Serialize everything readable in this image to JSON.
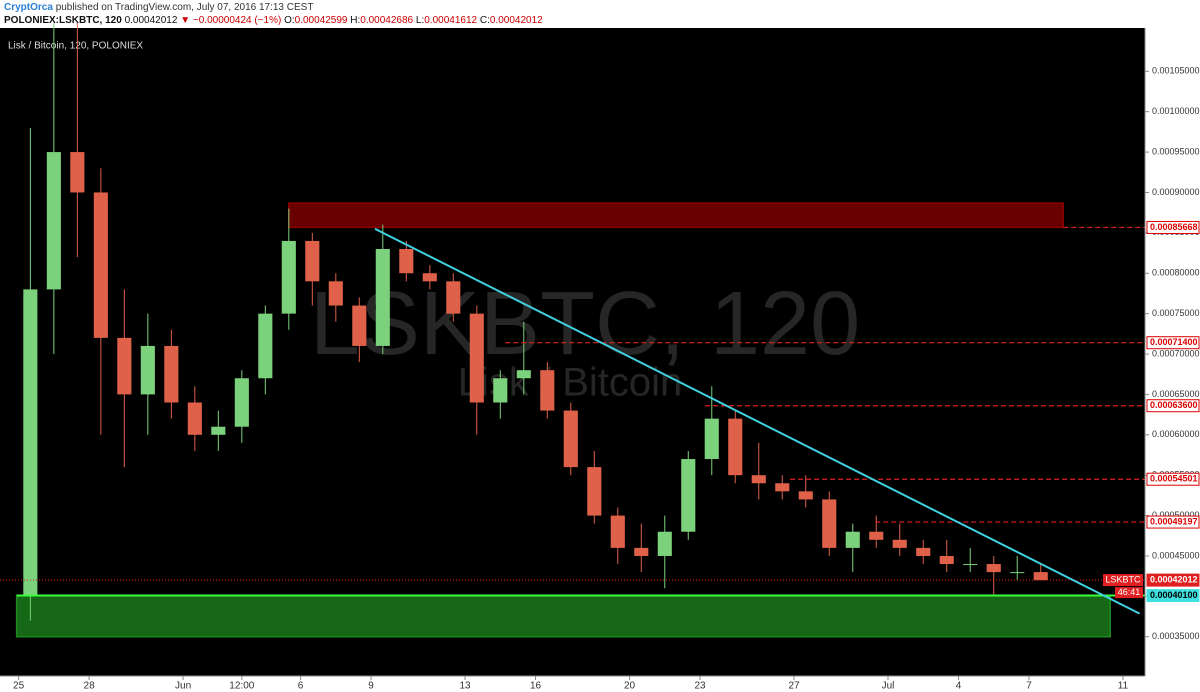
{
  "header": {
    "author": "CryptOrca",
    "published": "published on TradingView.com, July 07, 2016 17:13 CEST",
    "symbol": "POLONIEX:LSKBTC, 120",
    "last": "0.00042012",
    "arrow": "▼",
    "change": "−0.00000424 (−1%)",
    "o_label": "O:",
    "o": "0.00042599",
    "h_label": "H:",
    "h": "0.00042686",
    "l_label": "L:",
    "l": "0.00041612",
    "c_label": "C:",
    "c": "0.00042012"
  },
  "chart_data": {
    "type": "candlestick",
    "title": "Lisk / Bitcoin, 120, POLONIEX",
    "watermark": "LSKBTC, 120",
    "watermark_sub": "Lisk / Bitcoin",
    "up_color": "#7cd17c",
    "down_color": "#e0614a",
    "x": [
      "2016-05-25T12:00",
      "2016-05-26T12:00",
      "2016-05-27T12:00",
      "2016-05-28T12:00",
      "2016-05-29T12:00",
      "2016-05-30T12:00",
      "2016-05-31T12:00",
      "2016-06-01T12:00",
      "2016-06-02T12:00",
      "2016-06-03T12:00",
      "2016-06-04T12:00",
      "2016-06-05T12:00",
      "2016-06-06T12:00",
      "2016-06-07T12:00",
      "2016-06-08T12:00",
      "2016-06-09T12:00",
      "2016-06-10T12:00",
      "2016-06-11T12:00",
      "2016-06-12T12:00",
      "2016-06-13T12:00",
      "2016-06-14T12:00",
      "2016-06-15T12:00",
      "2016-06-16T12:00",
      "2016-06-17T12:00",
      "2016-06-18T12:00",
      "2016-06-19T12:00",
      "2016-06-20T12:00",
      "2016-06-21T12:00",
      "2016-06-22T12:00",
      "2016-06-23T12:00",
      "2016-06-24T12:00",
      "2016-06-25T12:00",
      "2016-06-26T12:00",
      "2016-06-27T12:00",
      "2016-06-28T12:00",
      "2016-06-29T12:00",
      "2016-06-30T12:00",
      "2016-07-01T12:00",
      "2016-07-02T12:00",
      "2016-07-03T12:00",
      "2016-07-04T12:00",
      "2016-07-05T12:00",
      "2016-07-06T12:00",
      "2016-07-07T12:00"
    ],
    "open": [
      0.0004,
      0.00078,
      0.00095,
      0.0009,
      0.00072,
      0.00065,
      0.00071,
      0.00064,
      0.0006,
      0.00061,
      0.00067,
      0.00075,
      0.00084,
      0.00079,
      0.00076,
      0.00071,
      0.00083,
      0.0008,
      0.00079,
      0.00075,
      0.00064,
      0.00067,
      0.00068,
      0.00063,
      0.00056,
      0.0005,
      0.00046,
      0.00045,
      0.00048,
      0.00057,
      0.00062,
      0.00055,
      0.00054,
      0.00053,
      0.00052,
      0.00046,
      0.00048,
      0.00047,
      0.00046,
      0.00045,
      0.00044,
      0.00044,
      0.00043,
      0.00043
    ],
    "high": [
      0.00098,
      0.00111,
      0.00111,
      0.00093,
      0.00078,
      0.00075,
      0.00073,
      0.00066,
      0.00063,
      0.00068,
      0.00076,
      0.00088,
      0.00085,
      0.0008,
      0.00077,
      0.00086,
      0.00084,
      0.00081,
      0.0008,
      0.00076,
      0.00068,
      0.00074,
      0.00069,
      0.00064,
      0.00058,
      0.00051,
      0.00049,
      0.0005,
      0.00058,
      0.00066,
      0.00063,
      0.00059,
      0.00055,
      0.00055,
      0.00053,
      0.00049,
      0.0005,
      0.00049,
      0.00047,
      0.00047,
      0.00046,
      0.00045,
      0.00045,
      0.00044
    ],
    "low": [
      0.00037,
      0.0007,
      0.00082,
      0.0006,
      0.00056,
      0.0006,
      0.00062,
      0.00058,
      0.00058,
      0.00059,
      0.00065,
      0.00073,
      0.00076,
      0.00074,
      0.00069,
      0.0007,
      0.00079,
      0.00078,
      0.00074,
      0.0006,
      0.00062,
      0.00065,
      0.00062,
      0.00055,
      0.00049,
      0.00044,
      0.00043,
      0.00041,
      0.00047,
      0.00055,
      0.00054,
      0.00052,
      0.00052,
      0.00051,
      0.00045,
      0.00043,
      0.00046,
      0.00045,
      0.00044,
      0.00043,
      0.00043,
      0.0004,
      0.00042,
      0.00042
    ],
    "close": [
      0.00078,
      0.00095,
      0.0009,
      0.00072,
      0.00065,
      0.00071,
      0.00064,
      0.0006,
      0.00061,
      0.00067,
      0.00075,
      0.00084,
      0.00079,
      0.00076,
      0.00071,
      0.00083,
      0.0008,
      0.00079,
      0.00075,
      0.00064,
      0.00067,
      0.00068,
      0.00063,
      0.00056,
      0.0005,
      0.00046,
      0.00045,
      0.00048,
      0.00057,
      0.00062,
      0.00055,
      0.00054,
      0.00053,
      0.00052,
      0.00046,
      0.00048,
      0.00047,
      0.00046,
      0.00045,
      0.00044,
      0.00044,
      0.00043,
      0.00043,
      0.00042
    ],
    "xlim": [
      "2016-05-24T05:00",
      "2016-07-11T22:30"
    ],
    "xticks": [
      {
        "value": "2016-05-25T00:00",
        "label": "25"
      },
      {
        "value": "2016-05-28T00:00",
        "label": "28"
      },
      {
        "value": "2016-06-01T00:00",
        "label": "Jun"
      },
      {
        "value": "2016-06-03T12:00",
        "label": "12:00"
      },
      {
        "value": "2016-06-06T00:00",
        "label": "6"
      },
      {
        "value": "2016-06-09T00:00",
        "label": "9"
      },
      {
        "value": "2016-06-13T00:00",
        "label": "13"
      },
      {
        "value": "2016-06-16T00:00",
        "label": "16"
      },
      {
        "value": "2016-06-20T00:00",
        "label": "20"
      },
      {
        "value": "2016-06-23T00:00",
        "label": "23"
      },
      {
        "value": "2016-06-27T00:00",
        "label": "27"
      },
      {
        "value": "2016-07-01T00:00",
        "label": "Jul"
      },
      {
        "value": "2016-07-04T00:00",
        "label": "4"
      },
      {
        "value": "2016-07-07T00:00",
        "label": "7"
      },
      {
        "value": "2016-07-11T00:00",
        "label": "11"
      }
    ],
    "ylim": [
      0.0003014,
      0.0011036
    ],
    "yticks": [
      {
        "value": 0.00035,
        "label": "0.00035000"
      },
      {
        "value": 0.0004,
        "label": "0.00040000"
      },
      {
        "value": 0.00045,
        "label": "0.00045000"
      },
      {
        "value": 0.0005,
        "label": "0.00050000"
      },
      {
        "value": 0.00055,
        "label": "0.00055000"
      },
      {
        "value": 0.0006,
        "label": "0.00060000"
      },
      {
        "value": 0.00065,
        "label": "0.00065000"
      },
      {
        "value": 0.0007,
        "label": "0.00070000"
      },
      {
        "value": 0.00075,
        "label": "0.00075000"
      },
      {
        "value": 0.0008,
        "label": "0.00080000"
      },
      {
        "value": 0.00085,
        "label": "0.00085000"
      },
      {
        "value": 0.0009,
        "label": "0.00090000"
      },
      {
        "value": 0.00095,
        "label": "0.00095000"
      },
      {
        "value": 0.001,
        "label": "0.00100000"
      },
      {
        "value": 0.00105,
        "label": "0.00105000"
      }
    ],
    "grid": false,
    "zones": [
      {
        "from": "2016-06-05T12:00",
        "to": "2016-07-08T11:00",
        "low": 0.00085668,
        "high": 0.0008868,
        "color": "#8b0000"
      },
      {
        "from": "2016-05-24T22:00",
        "to": "2016-07-10T11:00",
        "low": 0.00035,
        "high": 0.000401,
        "color": "#1e8a1e"
      }
    ],
    "levels": [
      {
        "from": "2016-07-08T11:00",
        "value": 0.00085668,
        "label": "0.00085668"
      },
      {
        "from": "2016-06-14T17:00",
        "value": 0.000714,
        "label": "0.00071400"
      },
      {
        "from": "2016-06-23T05:00",
        "value": 0.000636,
        "label": "0.00063600"
      },
      {
        "from": "2016-06-26T20:00",
        "value": 0.00054501,
        "label": "0.00054501"
      },
      {
        "from": "2016-06-30T11:00",
        "value": 0.00049197,
        "label": "0.00049197"
      }
    ],
    "support": {
      "value": 0.000401,
      "label": "0.00040100",
      "color": "#40e0e0"
    },
    "trendline": {
      "x": [
        "2016-06-09T04:00",
        "2016-07-11T17:00"
      ],
      "y": [
        0.000855,
        0.0003786
      ],
      "color": "#40d0e0"
    },
    "price": {
      "name": "LSKBTC",
      "value": 0.00042012,
      "label": "0.00042012",
      "countdown": "46:41"
    }
  }
}
